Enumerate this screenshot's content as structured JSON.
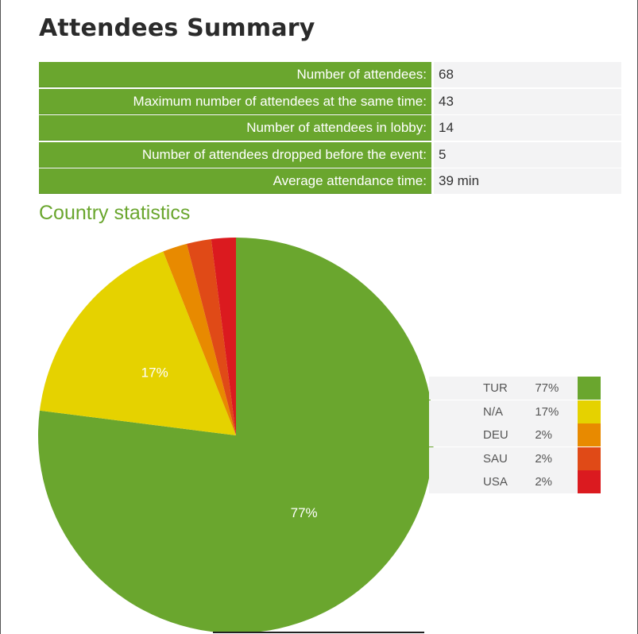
{
  "title": "Attendees Summary",
  "summary": [
    {
      "label": "Number of attendees:",
      "value": "68"
    },
    {
      "label": "Maximum number of attendees at the same time:",
      "value": "43"
    },
    {
      "label": "Number of attendees in lobby:",
      "value": "14"
    },
    {
      "label": "Number of attendees dropped before the event:",
      "value": "5"
    },
    {
      "label": "Average attendance time:",
      "value": "39 min"
    }
  ],
  "country_title": "Country statistics",
  "chart_data": {
    "type": "pie",
    "categories": [
      "TUR",
      "N/A",
      "DEU",
      "SAU",
      "USA"
    ],
    "values": [
      77,
      17,
      2,
      2,
      2
    ],
    "labels": [
      "77%",
      "17%",
      "2%",
      "2%",
      "2%"
    ],
    "colors": [
      "#6aa62e",
      "#e5d200",
      "#e88a00",
      "#e04a17",
      "#db1a1f"
    ],
    "legend": "right"
  }
}
